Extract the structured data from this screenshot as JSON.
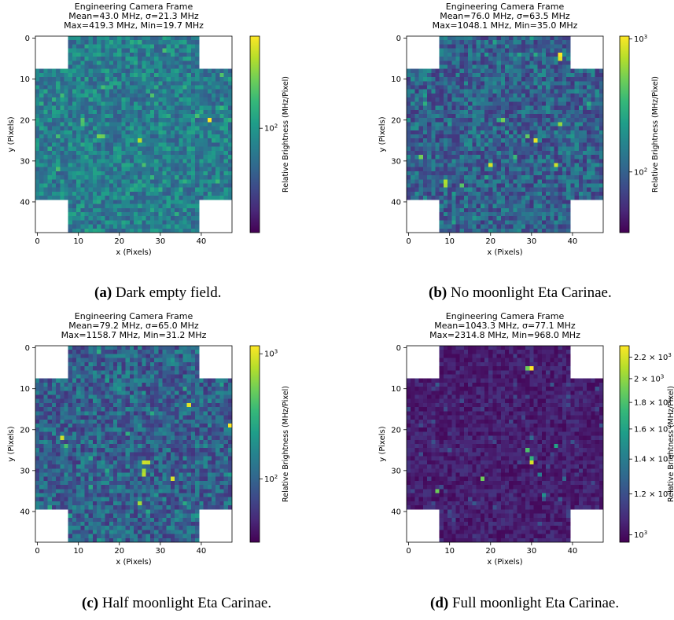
{
  "colors": {
    "viridis": [
      "#440154",
      "#482878",
      "#3e4989",
      "#31688e",
      "#26828e",
      "#1f9e89",
      "#35b779",
      "#6ece58",
      "#b5de2b",
      "#fde725"
    ]
  },
  "chart_data": [
    {
      "type": "heatmap",
      "title": "Engineering Camera Frame",
      "stats_line1": "Mean=43.0 MHz, σ=21.3 MHz",
      "stats_line2": "Max=419.3 MHz, Min=19.7 MHz",
      "xlabel": "x (Pixels)",
      "ylabel": "y (Pixels)",
      "xlim": [
        -0.5,
        47.5
      ],
      "ylim": [
        47.5,
        -0.5
      ],
      "xticks": [
        0,
        10,
        20,
        30,
        40
      ],
      "yticks": [
        0,
        10,
        20,
        30,
        40
      ],
      "grid": false,
      "colorbar": {
        "label": "Relative Brightness (MHz/Pixel)",
        "scale": "log",
        "range": [
          19.7,
          419.3
        ],
        "ticks": [
          {
            "value": 100,
            "label": "10²"
          }
        ]
      },
      "pixel_range_mhz": [
        19.7,
        419.3
      ],
      "bright_pixels": [
        {
          "x": 11,
          "y": 20,
          "value": 180
        },
        {
          "x": 11,
          "y": 21,
          "value": 170
        },
        {
          "x": 15,
          "y": 24,
          "value": 220
        },
        {
          "x": 16,
          "y": 24,
          "value": 210
        },
        {
          "x": 25,
          "y": 25,
          "value": 300
        },
        {
          "x": 42,
          "y": 20,
          "value": 419.3
        },
        {
          "x": 3,
          "y": 27,
          "value": 130
        },
        {
          "x": 28,
          "y": 34,
          "value": 150
        },
        {
          "x": 36,
          "y": 12,
          "value": 140
        }
      ],
      "masked_corners": "white 8x8 px squares at each corner",
      "caption_label": "(a)",
      "caption_text": "Dark empty field."
    },
    {
      "type": "heatmap",
      "title": "Engineering Camera Frame",
      "stats_line1": "Mean=76.0 MHz, σ=63.5 MHz",
      "stats_line2": "Max=1048.1 MHz, Min=35.0 MHz",
      "xlabel": "x (Pixels)",
      "ylabel": "y (Pixels)",
      "xlim": [
        -0.5,
        47.5
      ],
      "ylim": [
        47.5,
        -0.5
      ],
      "xticks": [
        0,
        10,
        20,
        30,
        40
      ],
      "yticks": [
        0,
        10,
        20,
        30,
        40
      ],
      "grid": false,
      "colorbar": {
        "label": "Relative Brightness (MHz/Pixel)",
        "scale": "log",
        "range": [
          35.0,
          1048.1
        ],
        "ticks": [
          {
            "value": 100,
            "label": "10²"
          },
          {
            "value": 1000,
            "label": "10³"
          }
        ]
      },
      "pixel_range_mhz": [
        35.0,
        1048.1
      ],
      "bright_pixels": [
        {
          "x": 37,
          "y": 4,
          "value": 1048.1
        },
        {
          "x": 37,
          "y": 5,
          "value": 900
        },
        {
          "x": 31,
          "y": 25,
          "value": 950
        },
        {
          "x": 20,
          "y": 31,
          "value": 850
        },
        {
          "x": 9,
          "y": 35,
          "value": 700
        },
        {
          "x": 9,
          "y": 36,
          "value": 650
        },
        {
          "x": 36,
          "y": 31,
          "value": 800
        },
        {
          "x": 3,
          "y": 29,
          "value": 500
        },
        {
          "x": 23,
          "y": 20,
          "value": 500
        },
        {
          "x": 37,
          "y": 21,
          "value": 600
        },
        {
          "x": 29,
          "y": 24,
          "value": 450
        },
        {
          "x": 13,
          "y": 36,
          "value": 420
        },
        {
          "x": 26,
          "y": 29,
          "value": 350
        },
        {
          "x": 4,
          "y": 16,
          "value": 300
        }
      ],
      "masked_corners": "white 8x8 px squares at each corner",
      "caption_label": "(b)",
      "caption_text": "No moonlight Eta Carinae."
    },
    {
      "type": "heatmap",
      "title": "Engineering Camera Frame",
      "stats_line1": "Mean=79.2 MHz, σ=65.0 MHz",
      "stats_line2": "Max=1158.7 MHz, Min=31.2 MHz",
      "xlabel": "x (Pixels)",
      "ylabel": "y (Pixels)",
      "xlim": [
        -0.5,
        47.5
      ],
      "ylim": [
        47.5,
        -0.5
      ],
      "xticks": [
        0,
        10,
        20,
        30,
        40
      ],
      "yticks": [
        0,
        10,
        20,
        30,
        40
      ],
      "grid": false,
      "colorbar": {
        "label": "Relative Brightness (MHz/Pixel)",
        "scale": "log",
        "range": [
          31.2,
          1158.7
        ],
        "ticks": [
          {
            "value": 100,
            "label": "10²"
          },
          {
            "value": 1000,
            "label": "10³"
          }
        ]
      },
      "pixel_range_mhz": [
        31.2,
        1158.7
      ],
      "bright_pixels": [
        {
          "x": 37,
          "y": 14,
          "value": 1000
        },
        {
          "x": 47,
          "y": 19,
          "value": 1158.7
        },
        {
          "x": 6,
          "y": 22,
          "value": 900
        },
        {
          "x": 26,
          "y": 28,
          "value": 900
        },
        {
          "x": 27,
          "y": 28,
          "value": 850
        },
        {
          "x": 26,
          "y": 30,
          "value": 700
        },
        {
          "x": 26,
          "y": 31,
          "value": 800
        },
        {
          "x": 33,
          "y": 32,
          "value": 950
        },
        {
          "x": 25,
          "y": 38,
          "value": 700
        },
        {
          "x": 7,
          "y": 24,
          "value": 400
        },
        {
          "x": 15,
          "y": 1,
          "value": 300
        },
        {
          "x": 22,
          "y": 21,
          "value": 300
        }
      ],
      "masked_corners": "white 8x8 px squares at each corner",
      "caption_label": "(c)",
      "caption_text": "Half moonlight Eta Carinae."
    },
    {
      "type": "heatmap",
      "title": "Engineering Camera Frame",
      "stats_line1": "Mean=1043.3 MHz, σ=77.1 MHz",
      "stats_line2": "Max=2314.8 MHz, Min=968.0 MHz",
      "xlabel": "x (Pixels)",
      "ylabel": "y (Pixels)",
      "xlim": [
        -0.5,
        47.5
      ],
      "ylim": [
        47.5,
        -0.5
      ],
      "xticks": [
        0,
        10,
        20,
        30,
        40
      ],
      "yticks": [
        0,
        10,
        20,
        30,
        40
      ],
      "grid": false,
      "colorbar": {
        "label": "Relative Brightness (MHz/Pixel)",
        "scale": "log",
        "range": [
          968.0,
          2314.8
        ],
        "ticks": [
          {
            "value": 1000,
            "label": "10³"
          },
          {
            "value": 1200,
            "label": "1.2 × 10³"
          },
          {
            "value": 1400,
            "label": "1.4 × 10³"
          },
          {
            "value": 1600,
            "label": "1.6 × 10³"
          },
          {
            "value": 1800,
            "label": "1.8 × 10³"
          },
          {
            "value": 2000,
            "label": "2 × 10³"
          },
          {
            "value": 2200,
            "label": "2.2 × 10³"
          }
        ]
      },
      "pixel_range_mhz": [
        968.0,
        2314.8
      ],
      "bright_pixels": [
        {
          "x": 30,
          "y": 5,
          "value": 2314.8
        },
        {
          "x": 29,
          "y": 5,
          "value": 1900
        },
        {
          "x": 30,
          "y": 28,
          "value": 2200
        },
        {
          "x": 29,
          "y": 25,
          "value": 1800
        },
        {
          "x": 30,
          "y": 27,
          "value": 1700
        },
        {
          "x": 18,
          "y": 32,
          "value": 1900
        },
        {
          "x": 7,
          "y": 35,
          "value": 1900
        },
        {
          "x": 36,
          "y": 24,
          "value": 1600
        },
        {
          "x": 33,
          "y": 36,
          "value": 1500
        },
        {
          "x": 32,
          "y": 31,
          "value": 1400
        },
        {
          "x": 38,
          "y": 32,
          "value": 1300
        },
        {
          "x": 30,
          "y": 22,
          "value": 1300
        },
        {
          "x": 7,
          "y": 9,
          "value": 1250
        },
        {
          "x": 3,
          "y": 26,
          "value": 1200
        }
      ],
      "masked_corners": "white 8x8 px squares at each corner",
      "caption_label": "(d)",
      "caption_text": "Full moonlight Eta Carinae."
    }
  ]
}
